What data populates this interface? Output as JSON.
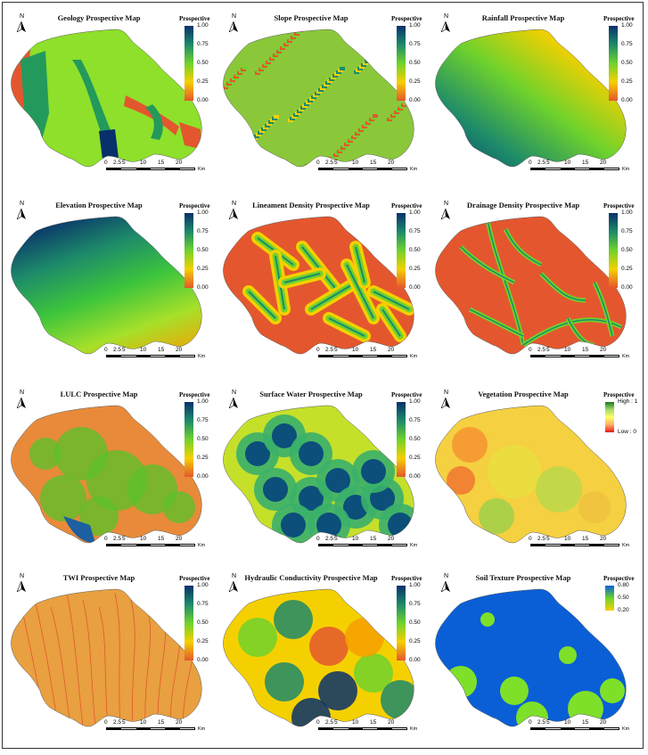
{
  "panels": [
    {
      "title": "Geology Prospective Map",
      "legend": {
        "title": "Prospective",
        "ticks": [
          "1.00",
          "0.75",
          "0.50",
          "0.25",
          "0.00"
        ],
        "style": "gradient"
      },
      "fill": "geology"
    },
    {
      "title": "Slope Prospective Map",
      "legend": {
        "title": "Prospective",
        "ticks": [
          "1.00",
          "0.75",
          "0.50",
          "0.25",
          "0.00"
        ],
        "style": "gradient"
      },
      "fill": "slope"
    },
    {
      "title": "Rainfall Prospective Map",
      "legend": {
        "title": "Prospective",
        "ticks": [
          "1.00",
          "0.75",
          "0.50",
          "0.25",
          "0.00"
        ],
        "style": "gradient"
      },
      "fill": "rainfall"
    },
    {
      "title": "Elevation Prospective Map",
      "legend": {
        "title": "Prospective",
        "ticks": [
          "1.00",
          "0.75",
          "0.50",
          "0.25",
          "0.00"
        ],
        "style": "gradient"
      },
      "fill": "elevation"
    },
    {
      "title": "Lineament Density Prospective Map",
      "legend": {
        "title": "Prospective",
        "ticks": [
          "1.00",
          "0.75",
          "0.50",
          "0.25",
          "0.00"
        ],
        "style": "gradient"
      },
      "fill": "lineament"
    },
    {
      "title": "Drainage Density Prospective Map",
      "legend": {
        "title": "Prospective",
        "ticks": [
          "1.00",
          "0.75",
          "0.50",
          "0.25",
          "0.00"
        ],
        "style": "gradient"
      },
      "fill": "drainage"
    },
    {
      "title": "LULC Prospective Map",
      "legend": {
        "title": "Prospective",
        "ticks": [
          "1.00",
          "0.75",
          "0.50",
          "0.25",
          "0.00"
        ],
        "style": "gradient"
      },
      "fill": "lulc"
    },
    {
      "title": "Surface Water Prospective Map",
      "legend": {
        "title": "Prospective",
        "ticks": [
          "1.00",
          "0.75",
          "0.50",
          "0.25",
          "0.00"
        ],
        "style": "gradient"
      },
      "fill": "surface"
    },
    {
      "title": "Vegetation Prospective Map",
      "legend": {
        "title": "Prospective",
        "ticks": [
          "High : 1",
          "Low : 0"
        ],
        "style": "vegetation"
      },
      "fill": "vegetation"
    },
    {
      "title": "TWI Prospective Map",
      "legend": {
        "title": "Prospective",
        "ticks": [
          "1.00",
          "0.75",
          "0.50",
          "0.25",
          "0.00"
        ],
        "style": "gradient"
      },
      "fill": "twi"
    },
    {
      "title": "Hydraulic Conductivity  Prospective Map",
      "legend": {
        "title": "Prospective",
        "ticks": [
          "1.00",
          "0.75",
          "0.50",
          "0.25",
          "0.00"
        ],
        "style": "gradient"
      },
      "fill": "hydraulic"
    },
    {
      "title": "Soil Texture Prospective Map",
      "legend": {
        "title": "Prospective",
        "ticks": [
          "0.80",
          "0.50",
          "0.20"
        ],
        "style": "soil"
      },
      "fill": "soil"
    }
  ],
  "north_label": "N",
  "scale_labels": [
    "0",
    "2.5",
    "5",
    "10",
    "15",
    "20"
  ],
  "scale_unit": "Km",
  "colors": {
    "high": "#08306b",
    "mid_high": "#1d8a6a",
    "mid": "#6fd22c",
    "mid_low": "#f5d000",
    "low": "#e4572e"
  }
}
